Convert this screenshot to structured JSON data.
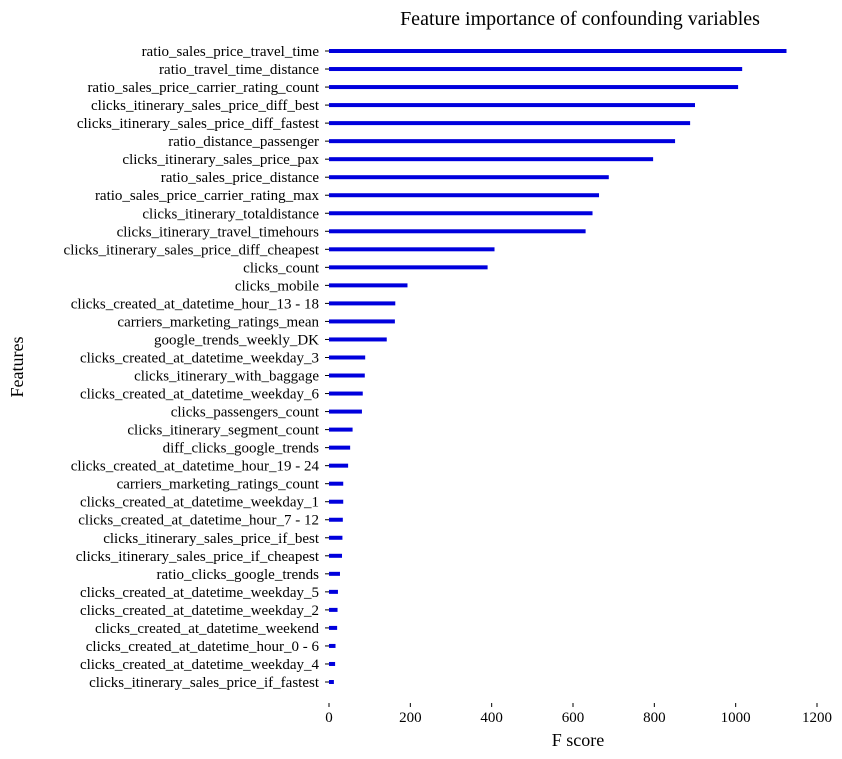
{
  "chart_data": {
    "type": "bar",
    "orientation": "horizontal",
    "title": "Feature importance of confounding variables",
    "xlabel": "F score",
    "ylabel": "Features",
    "xlim": [
      0,
      1200
    ],
    "xticks": [
      "0",
      "200",
      "400",
      "600",
      "800",
      "1000",
      "1200"
    ],
    "grid": false,
    "bar_color": "#0000dd",
    "categories": [
      "ratio_sales_price_travel_time",
      "ratio_travel_time_distance",
      "ratio_sales_price_carrier_rating_count",
      "clicks_itinerary_sales_price_diff_best",
      "clicks_itinerary_sales_price_diff_fastest",
      "ratio_distance_passenger",
      "clicks_itinerary_sales_price_pax",
      "ratio_sales_price_distance",
      "ratio_sales_price_carrier_rating_max",
      "clicks_itinerary_totaldistance",
      "clicks_itinerary_travel_timehours",
      "clicks_itinerary_sales_price_diff_cheapest",
      "clicks_count",
      "clicks_mobile",
      "clicks_created_at_datetime_hour_13 - 18",
      "carriers_marketing_ratings_mean",
      "google_trends_weekly_DK",
      "clicks_created_at_datetime_weekday_3",
      "clicks_itinerary_with_baggage",
      "clicks_created_at_datetime_weekday_6",
      "clicks_passengers_count",
      "clicks_itinerary_segment_count",
      "diff_clicks_google_trends",
      "clicks_created_at_datetime_hour_19 - 24",
      "carriers_marketing_ratings_count",
      "clicks_created_at_datetime_weekday_1",
      "clicks_created_at_datetime_hour_7 - 12",
      "clicks_itinerary_sales_price_if_best",
      "clicks_itinerary_sales_price_if_cheapest",
      "ratio_clicks_google_trends",
      "clicks_created_at_datetime_weekday_5",
      "clicks_created_at_datetime_weekday_2",
      "clicks_created_at_datetime_weekend",
      "clicks_created_at_datetime_hour_0 - 6",
      "clicks_created_at_datetime_weekday_4",
      "clicks_itinerary_sales_price_if_fastest"
    ],
    "values": [
      1125,
      1016,
      1006,
      900,
      888,
      851,
      797,
      688,
      664,
      648,
      631,
      407,
      390,
      193,
      163,
      162,
      142,
      89,
      88,
      83,
      81,
      58,
      52,
      47,
      35,
      35,
      34,
      33,
      32,
      27,
      22,
      21,
      20,
      16,
      15,
      12
    ]
  }
}
